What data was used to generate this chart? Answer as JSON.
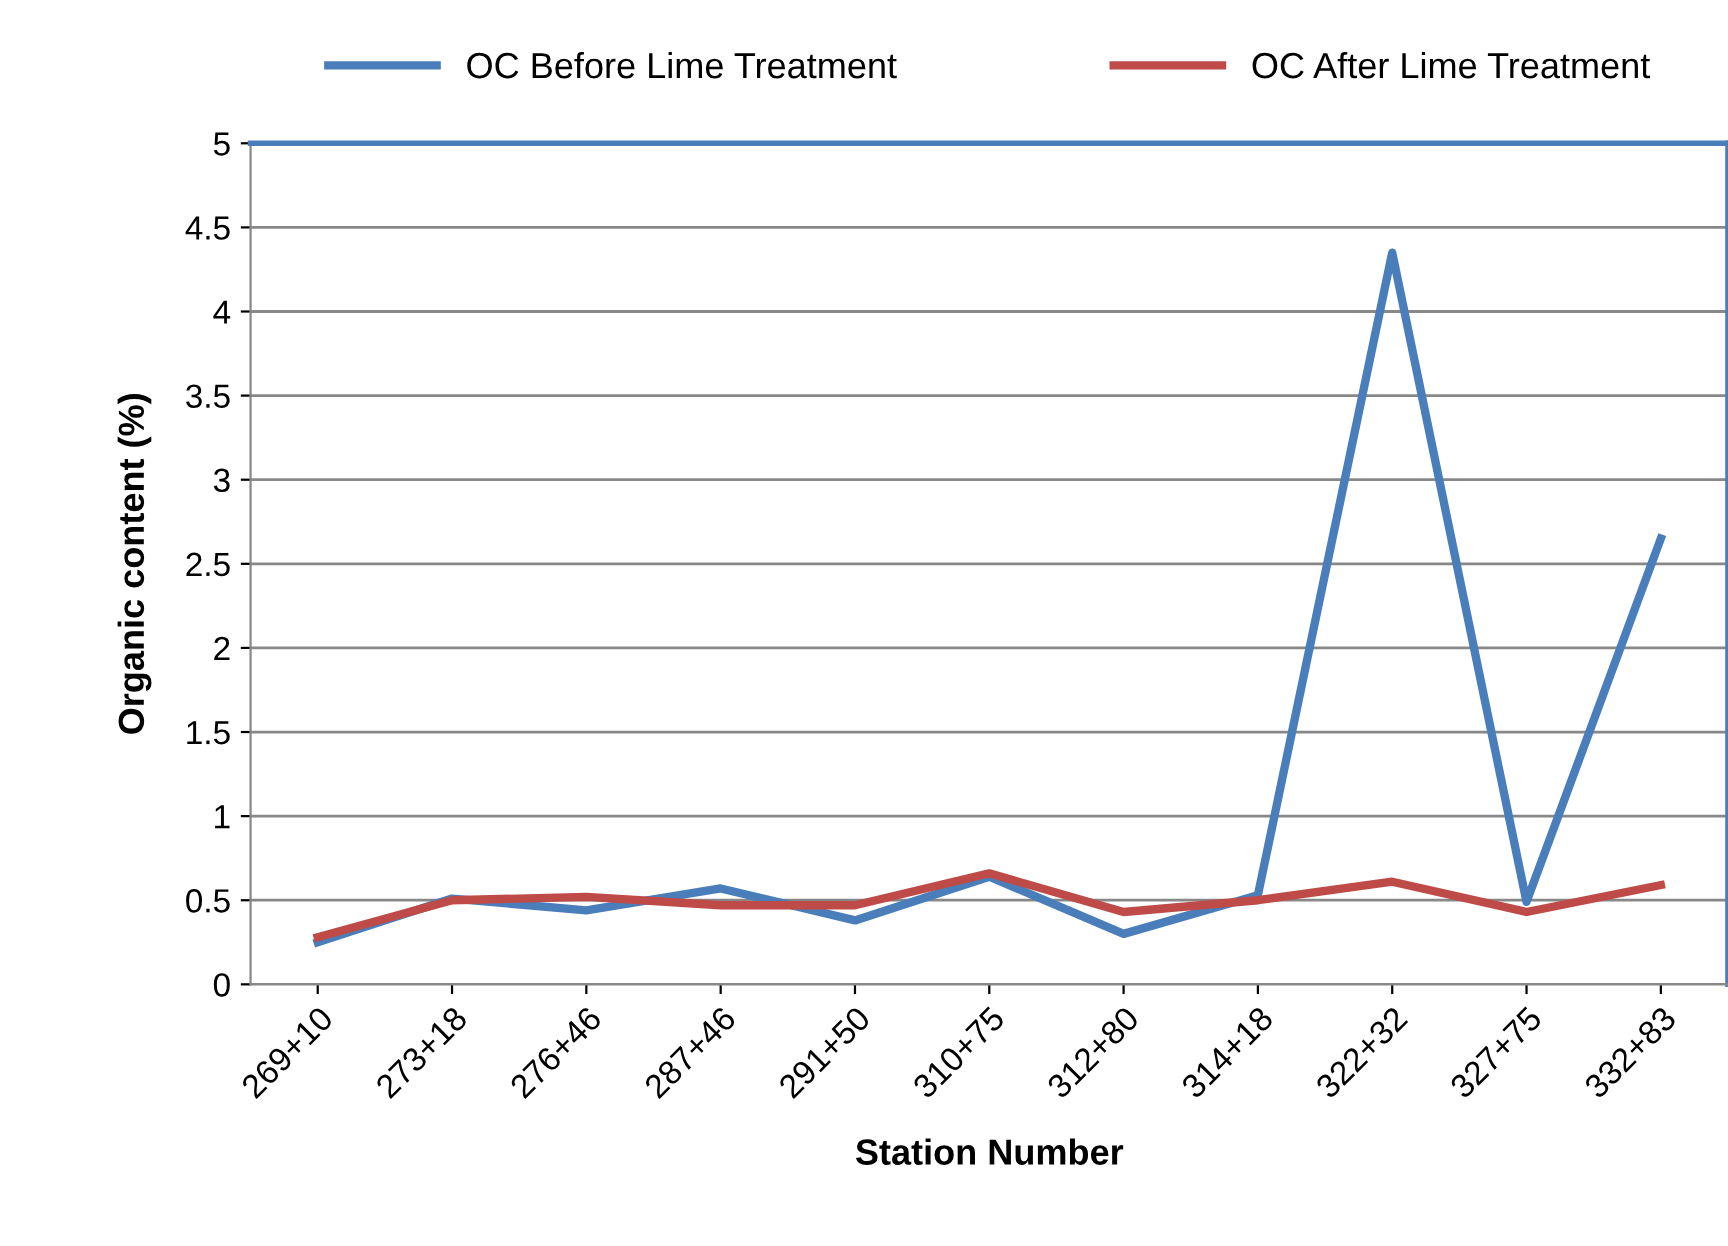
{
  "chart_data": {
    "type": "line",
    "xlabel": "Station Number",
    "ylabel": "Organic content (%)",
    "categories": [
      "269+10",
      "273+18",
      "276+46",
      "287+46",
      "291+50",
      "310+75",
      "312+80",
      "314+18",
      "322+32",
      "327+75",
      "332+83"
    ],
    "series": [
      {
        "name": "OC Before Lime Treatment",
        "color": "#4a7ebb",
        "values": [
          0.25,
          0.51,
          0.44,
          0.57,
          0.38,
          0.64,
          0.3,
          0.53,
          4.35,
          0.49,
          2.65
        ]
      },
      {
        "name": "OC After Lime Treatment",
        "color": "#be4b48",
        "values": [
          0.28,
          0.5,
          0.52,
          0.47,
          0.47,
          0.66,
          0.43,
          0.5,
          0.61,
          0.43,
          0.59
        ]
      }
    ],
    "ylim": [
      0,
      5
    ],
    "yticks": [
      0,
      0.5,
      1,
      1.5,
      2,
      2.5,
      3,
      3.5,
      4,
      4.5,
      5
    ],
    "grid": "y",
    "legend": "top",
    "marker": "none",
    "line_style": "solid"
  }
}
